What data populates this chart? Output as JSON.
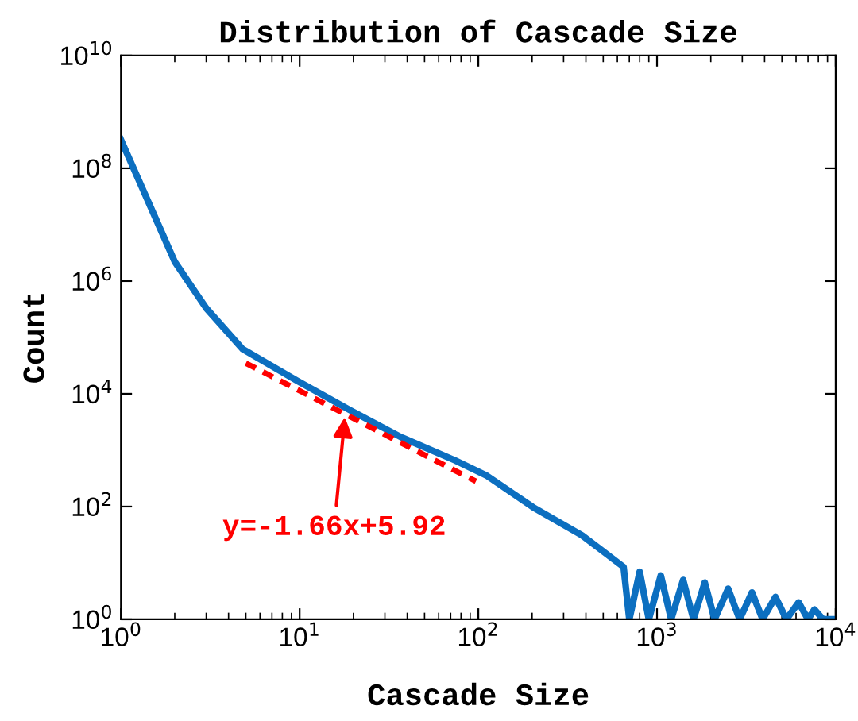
{
  "chart_data": {
    "type": "line",
    "title": "Distribution of Cascade Size",
    "xlabel": "Cascade Size",
    "ylabel": "Count",
    "log": "xy",
    "xlim": [
      1,
      10000
    ],
    "xticks": [
      {
        "value": 1,
        "label": "10$^{0}$"
      },
      {
        "value": 10,
        "label": "10$^{1}$"
      },
      {
        "value": 100,
        "label": "10$^{2}$"
      },
      {
        "value": 1000,
        "label": "10$^{3}$"
      },
      {
        "value": 10000,
        "label": "10$^{4}$"
      }
    ],
    "ylim": [
      1,
      10000000000
    ],
    "yticks": [
      {
        "value": 1,
        "label": "10$^{0}$"
      },
      {
        "value": 100,
        "label": "10$^{2}$"
      },
      {
        "value": 10000,
        "label": "10$^{4}$"
      },
      {
        "value": 1000000,
        "label": "10$^{6}$"
      },
      {
        "value": 100000000,
        "label": "10$^{8}$"
      },
      {
        "value": 10000000000,
        "label": "10$^{10}$"
      }
    ],
    "series": [
      {
        "color": "#0c6fc0",
        "line_style": "solid",
        "x": [
          1,
          2,
          3,
          4.8,
          9.7,
          19,
          37,
          74,
          112,
          207,
          380,
          650,
          700,
          800,
          900,
          1050,
          1200,
          1400,
          1600,
          1850,
          2100,
          2500,
          2900,
          3400,
          3900,
          4600,
          5300,
          6200,
          7000,
          7600,
          8500,
          10000
        ],
        "values": [
          320000000,
          2200000,
          330000,
          62000,
          17000,
          5200,
          1700,
          660,
          350,
          93,
          31,
          8.5,
          1,
          7,
          1,
          6,
          1,
          5,
          1,
          4.5,
          1,
          3.5,
          1,
          3,
          1,
          2.5,
          1,
          2,
          1,
          1.5,
          1,
          1
        ]
      },
      {
        "color": "#ff0000",
        "line_style": "dashed",
        "x": [
          5,
          97
        ],
        "values": [
          35000,
          280
        ]
      }
    ],
    "annotations": [
      {
        "text": "y=-1.66x+5.92",
        "x": 18,
        "y": 4600
      }
    ]
  }
}
